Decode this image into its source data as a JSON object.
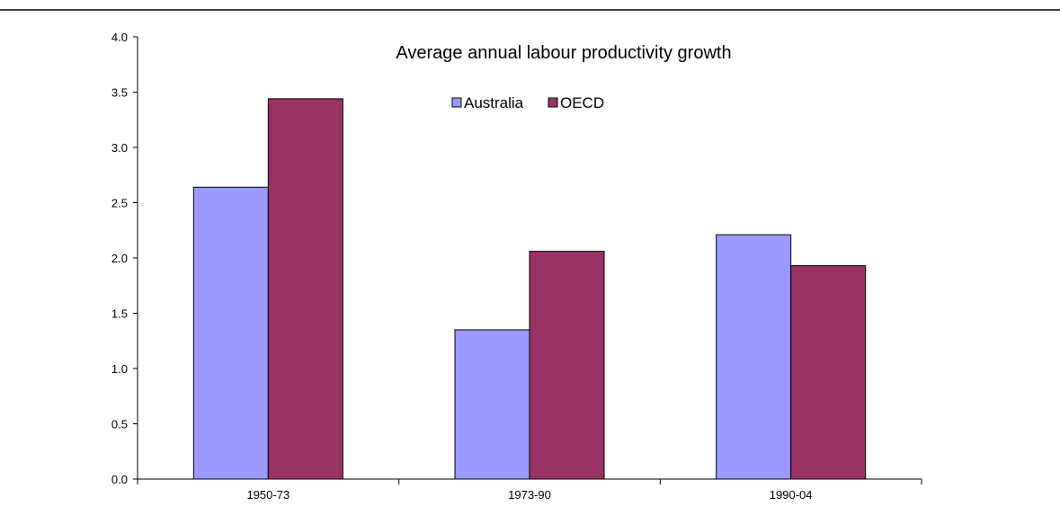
{
  "chart_data": {
    "type": "bar",
    "title": "Average annual labour productivity growth",
    "xlabel": "",
    "ylabel": "",
    "categories": [
      "1950-73",
      "1973-90",
      "1990-04"
    ],
    "series": [
      {
        "name": "Australia",
        "values": [
          2.64,
          1.35,
          2.21
        ],
        "color": "#9999ff"
      },
      {
        "name": "OECD",
        "values": [
          3.44,
          2.06,
          1.93
        ],
        "color": "#993366"
      }
    ],
    "ylim": [
      0,
      4
    ],
    "yticks": [
      "0.0",
      "0.5",
      "1.0",
      "1.5",
      "2.0",
      "2.5",
      "3.0",
      "3.5",
      "4.0"
    ],
    "grid": false,
    "legend_position": "top-center"
  }
}
